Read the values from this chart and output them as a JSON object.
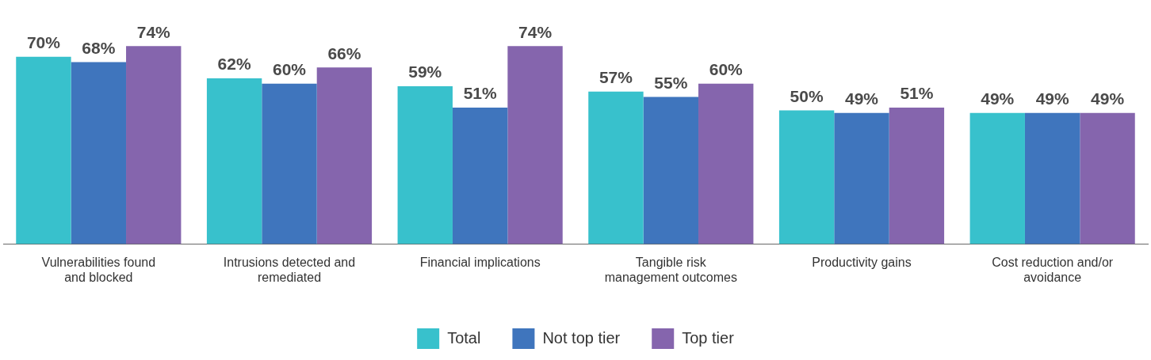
{
  "chart_data": {
    "type": "bar",
    "categories": [
      "Vulnerabilities found and blocked",
      "Intrusions detected and remediated",
      "Financial implications",
      "Tangible risk management outcomes",
      "Productivity gains",
      "Cost reduction and/or avoidance"
    ],
    "series": [
      {
        "name": "Total",
        "color": "#38c1cc",
        "values": [
          70,
          62,
          59,
          57,
          50,
          49
        ],
        "value_labels": [
          "70%",
          "62%",
          "59%",
          "57%",
          "50%",
          "49%"
        ]
      },
      {
        "name": "Not top tier",
        "color": "#3f75bd",
        "values": [
          68,
          60,
          51,
          55,
          49,
          49
        ],
        "value_labels": [
          "68%",
          "60%",
          "51%",
          "55%",
          "49%",
          "49%"
        ]
      },
      {
        "name": "Top tier",
        "color": "#8565ad",
        "values": [
          74,
          66,
          74,
          60,
          51,
          49
        ],
        "value_labels": [
          "74%",
          "66%",
          "74%",
          "60%",
          "51%",
          "49%"
        ]
      }
    ],
    "legend": "bottom",
    "grid": false,
    "tick_labels": "x"
  }
}
